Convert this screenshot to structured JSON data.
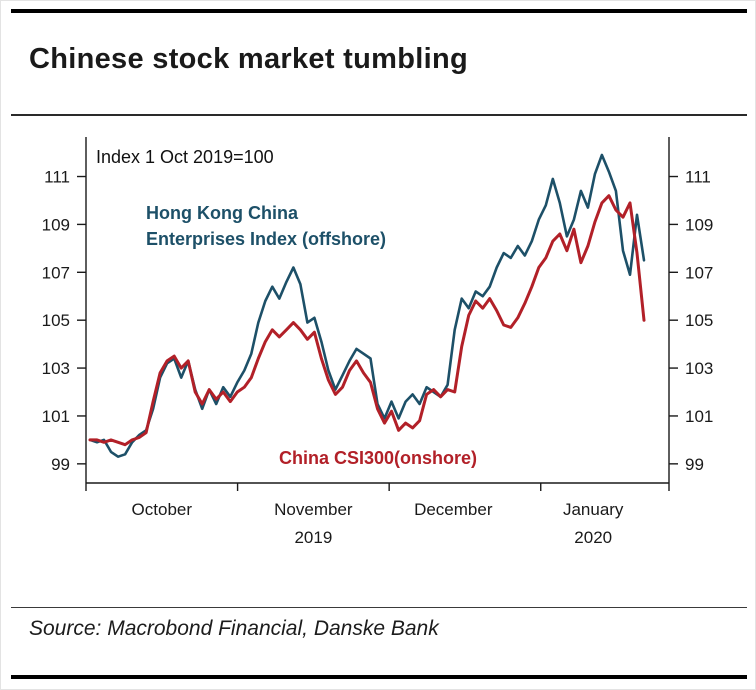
{
  "header": {
    "title": "Chinese stock market tumbling"
  },
  "footer": {
    "source": "Source: Macrobond Financial, Danske Bank"
  },
  "annotations": {
    "index_note": "Index 1 Oct 2019=100",
    "offshore_line1": "Hong Kong China",
    "offshore_line2": "Enterprises Index (offshore)",
    "onshore_label": "China CSI300(onshore)"
  },
  "colors": {
    "offshore_blue": "#1d5068",
    "onshore_red": "#b22028",
    "axis": "#1a1a1a",
    "frame_bar": "#000000"
  },
  "chart_data": {
    "type": "line",
    "title": "Chinese stock market tumbling",
    "index_note": "Index 1 Oct 2019=100",
    "ylim": [
      98.2,
      112.4
    ],
    "yticks": [
      99,
      101,
      103,
      105,
      107,
      109,
      111
    ],
    "grid": false,
    "legend_position": "annotations-inside-plot",
    "x_months": [
      {
        "label": "October",
        "center": 0.13
      },
      {
        "label": "November",
        "center": 0.39,
        "year": "2019"
      },
      {
        "label": "December",
        "center": 0.63
      },
      {
        "label": "January",
        "center": 0.87,
        "year": "2020"
      }
    ],
    "x_boundaries": [
      0,
      0.26,
      0.52,
      0.78,
      1
    ],
    "series": [
      {
        "id": "offshore-line",
        "name": "Hong Kong China Enterprises Index (offshore)",
        "color": "#1d5068",
        "values": [
          100.0,
          99.9,
          100.0,
          99.5,
          99.3,
          99.4,
          99.9,
          100.2,
          100.4,
          101.3,
          102.6,
          103.2,
          103.4,
          102.6,
          103.3,
          102.1,
          101.3,
          102.1,
          101.5,
          102.2,
          101.8,
          102.4,
          102.9,
          103.6,
          104.9,
          105.8,
          106.4,
          105.9,
          106.6,
          107.2,
          106.5,
          104.9,
          105.1,
          104.1,
          102.9,
          102.1,
          102.7,
          103.3,
          103.8,
          103.6,
          103.4,
          101.5,
          100.9,
          101.6,
          100.9,
          101.6,
          101.9,
          101.5,
          102.2,
          102.0,
          101.8,
          102.3,
          104.6,
          105.9,
          105.5,
          106.2,
          106.0,
          106.4,
          107.2,
          107.8,
          107.6,
          108.1,
          107.7,
          108.3,
          109.2,
          109.8,
          110.9,
          109.9,
          108.5,
          109.2,
          110.4,
          109.7,
          111.1,
          111.9,
          111.2,
          110.4,
          107.9,
          106.9,
          109.4,
          107.5
        ]
      },
      {
        "id": "onshore-line",
        "name": "China CSI300(onshore)",
        "color": "#b22028",
        "values": [
          100.0,
          100.0,
          99.9,
          100.0,
          99.9,
          99.8,
          100.0,
          100.1,
          100.3,
          101.6,
          102.8,
          103.3,
          103.5,
          103.0,
          103.3,
          102.0,
          101.5,
          102.1,
          101.7,
          102.0,
          101.6,
          102.0,
          102.2,
          102.6,
          103.4,
          104.1,
          104.6,
          104.3,
          104.6,
          104.9,
          104.6,
          104.2,
          104.5,
          103.4,
          102.5,
          101.9,
          102.2,
          102.9,
          103.3,
          102.8,
          102.4,
          101.3,
          100.7,
          101.2,
          100.4,
          100.7,
          100.5,
          100.8,
          101.9,
          102.1,
          101.8,
          102.1,
          102.0,
          103.9,
          105.2,
          105.8,
          105.5,
          105.9,
          105.4,
          104.8,
          104.7,
          105.1,
          105.7,
          106.4,
          107.2,
          107.6,
          108.3,
          108.6,
          107.9,
          108.8,
          107.4,
          108.1,
          109.1,
          109.9,
          110.2,
          109.6,
          109.3,
          109.9,
          107.8,
          105.0
        ]
      }
    ]
  }
}
